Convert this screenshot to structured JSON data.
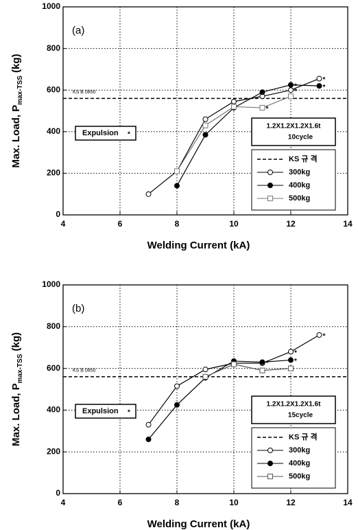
{
  "chart_data": [
    {
      "type": "line",
      "panel_label": "(a)",
      "x_label": "Welding Current (kA)",
      "y_label": "Max. Load, P",
      "y_label_sub": "max-TSS",
      "y_label_unit": "(kg)",
      "xlim": [
        4,
        14
      ],
      "xticks": [
        4,
        6,
        8,
        10,
        12,
        14
      ],
      "ylim": [
        0,
        1000
      ],
      "yticks": [
        0,
        200,
        400,
        600,
        800,
        1000
      ],
      "grid": true,
      "reference": {
        "name": "KS 규 격",
        "label": "KS B 0850",
        "value": 560
      },
      "expulsion_label": "Expulsion",
      "expulsion_symbol": "*",
      "spec_lines": [
        "1.2X1.2X1.2X1.6t",
        "10cycle"
      ],
      "series": [
        {
          "name": "300kg",
          "color": "#000000",
          "marker": "circle-open",
          "x": [
            7,
            8,
            9,
            10,
            11,
            12,
            13
          ],
          "values": [
            100,
            210,
            460,
            545,
            570,
            600,
            655
          ],
          "expulsion_x": [
            12,
            13
          ]
        },
        {
          "name": "400kg",
          "color": "#000000",
          "marker": "circle-filled",
          "x": [
            8,
            9,
            10,
            11,
            12,
            13
          ],
          "values": [
            140,
            385,
            515,
            590,
            625,
            620
          ],
          "expulsion_x": [
            12,
            13
          ]
        },
        {
          "name": "500kg",
          "color": "#777777",
          "marker": "square-open",
          "x": [
            8,
            9,
            10,
            11,
            12
          ],
          "values": [
            210,
            430,
            520,
            515,
            570
          ],
          "expulsion_x": [
            11
          ]
        }
      ]
    },
    {
      "type": "line",
      "panel_label": "(b)",
      "x_label": "Welding Current (kA)",
      "y_label": "Max. Load, P",
      "y_label_sub": "max-TSS",
      "y_label_unit": "(kg)",
      "xlim": [
        4,
        14
      ],
      "xticks": [
        4,
        6,
        8,
        10,
        12,
        14
      ],
      "ylim": [
        0,
        1000
      ],
      "yticks": [
        0,
        200,
        400,
        600,
        800,
        1000
      ],
      "grid": true,
      "reference": {
        "name": "KS 규 격",
        "label": "KS B 0850",
        "value": 560
      },
      "expulsion_label": "Expulsion",
      "expulsion_symbol": "*",
      "spec_lines": [
        "1.2X1.2X1.2X1.6t",
        "15cycle"
      ],
      "series": [
        {
          "name": "300kg",
          "color": "#000000",
          "marker": "circle-open",
          "x": [
            7,
            8,
            9,
            10,
            11,
            12,
            13
          ],
          "values": [
            330,
            515,
            595,
            625,
            625,
            680,
            760
          ],
          "expulsion_x": [
            12,
            13
          ]
        },
        {
          "name": "400kg",
          "color": "#000000",
          "marker": "circle-filled",
          "x": [
            7,
            8,
            9,
            10,
            11,
            12
          ],
          "values": [
            260,
            425,
            555,
            635,
            630,
            640
          ],
          "expulsion_x": [
            11,
            12
          ]
        },
        {
          "name": "500kg",
          "color": "#555555",
          "marker": "square-open",
          "x": [
            9,
            10,
            11,
            12
          ],
          "values": [
            560,
            620,
            590,
            600
          ],
          "expulsion_x": []
        }
      ]
    }
  ]
}
